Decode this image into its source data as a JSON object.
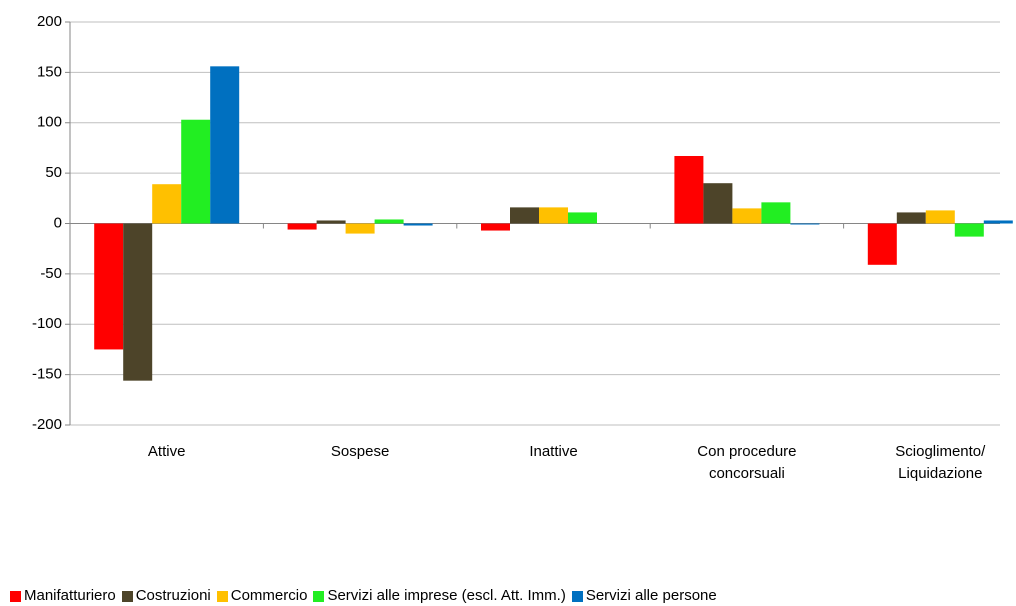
{
  "chart_data": {
    "type": "bar",
    "categories": [
      "Attive",
      "Sospese",
      "Inattive",
      "Con procedure concorsuali",
      "Scioglimento/ Liquidazione"
    ],
    "series": [
      {
        "name": "Manifatturiero",
        "color": "#ff0000",
        "values": [
          -125,
          -6,
          -7,
          67,
          -41
        ]
      },
      {
        "name": "Costruzioni",
        "color": "#4d4429",
        "values": [
          -156,
          3,
          16,
          40,
          11
        ]
      },
      {
        "name": "Commercio",
        "color": "#ffc000",
        "values": [
          39,
          -10,
          16,
          15,
          13
        ]
      },
      {
        "name": "Servizi alle imprese (escl. Att. Imm.)",
        "color": "#22ee22",
        "values": [
          103,
          4,
          11,
          21,
          -13
        ]
      },
      {
        "name": "Servizi alle persone",
        "color": "#0070c0",
        "values": [
          156,
          -2,
          0,
          -1,
          3
        ]
      }
    ],
    "ylim": [
      -200,
      200
    ],
    "yticks": [
      -200,
      -150,
      -100,
      -50,
      0,
      50,
      100,
      150,
      200
    ],
    "grid": true
  }
}
